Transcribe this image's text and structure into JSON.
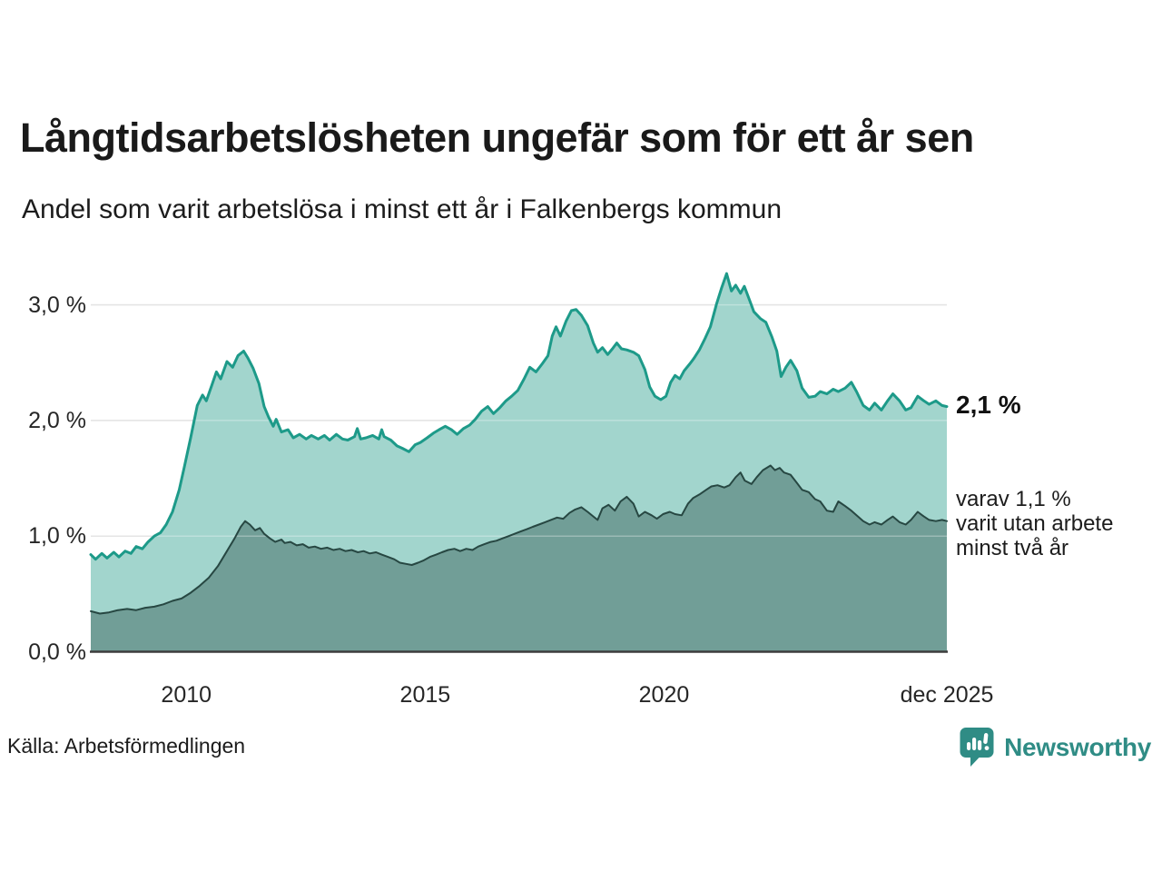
{
  "title": "Långtidsarbetslösheten ungefär som för ett år sen",
  "subtitle": "Andel som varit arbetslösa i minst ett år i Falkenbergs kommun",
  "source": "Källa: Arbetsförmedlingen",
  "brand": {
    "name": "Newsworthy",
    "color": "#2f8c85"
  },
  "annotations": {
    "total_end_label": "2,1 %",
    "subset_end_label": "varav 1,1 %\nvarit utan arbete\nminst två år"
  },
  "colors": {
    "total_line": "#1d9a89",
    "total_fill": "#a2d5cd",
    "subset_line": "#274742",
    "subset_fill": "#719e97",
    "grid": "#d9d9d9",
    "grid_overlay": "rgba(255,255,255,0.30)",
    "axis_baseline": "#3d3d3d"
  },
  "chart_data": {
    "type": "area",
    "title": "Långtidsarbetslösheten ungefär som för ett år sen",
    "subtitle": "Andel som varit arbetslösa i minst ett år i Falkenbergs kommun",
    "x_domain": [
      2008.0,
      2025.92
    ],
    "y_domain": [
      0,
      3.45
    ],
    "grid": "horizontal",
    "y_ticks": [
      {
        "label": "0,0 %",
        "value": 0
      },
      {
        "label": "1,0 %",
        "value": 1
      },
      {
        "label": "2,0 %",
        "value": 2
      },
      {
        "label": "3,0 %",
        "value": 3
      }
    ],
    "x_ticks": [
      {
        "label": "2010",
        "year": 2010
      },
      {
        "label": "2015",
        "year": 2015
      },
      {
        "label": "2020",
        "year": 2020
      },
      {
        "label": "dec 2025",
        "year": 2025.92
      }
    ],
    "series": [
      {
        "name": "Arbetslösa minst ett år",
        "end_label": "2,1 %",
        "line_color": "#1d9a89",
        "fill_color": "#a2d5cd",
        "x": [
          2008.0,
          2008.1,
          2008.23,
          2008.34,
          2008.48,
          2008.59,
          2008.72,
          2008.84,
          2008.95,
          2009.08,
          2009.2,
          2009.33,
          2009.46,
          2009.58,
          2009.71,
          2009.85,
          2009.96,
          2010.09,
          2010.23,
          2010.34,
          2010.42,
          2010.53,
          2010.63,
          2010.72,
          2010.85,
          2010.97,
          2011.08,
          2011.2,
          2011.29,
          2011.4,
          2011.52,
          2011.63,
          2011.72,
          2011.82,
          2011.88,
          2011.99,
          2012.13,
          2012.24,
          2012.37,
          2012.51,
          2012.62,
          2012.76,
          2012.89,
          2013.0,
          2013.14,
          2013.27,
          2013.38,
          2013.52,
          2013.58,
          2013.65,
          2013.76,
          2013.9,
          2014.03,
          2014.09,
          2014.14,
          2014.28,
          2014.41,
          2014.52,
          2014.66,
          2014.79,
          2014.9,
          2015.04,
          2015.17,
          2015.29,
          2015.42,
          2015.55,
          2015.67,
          2015.8,
          2015.93,
          2016.05,
          2016.18,
          2016.31,
          2016.43,
          2016.56,
          2016.69,
          2016.81,
          2016.94,
          2017.07,
          2017.19,
          2017.32,
          2017.45,
          2017.57,
          2017.66,
          2017.74,
          2017.83,
          2017.95,
          2018.06,
          2018.16,
          2018.27,
          2018.4,
          2018.52,
          2018.61,
          2018.71,
          2018.82,
          2018.92,
          2019.01,
          2019.11,
          2019.22,
          2019.36,
          2019.47,
          2019.6,
          2019.7,
          2019.81,
          2019.93,
          2020.04,
          2020.14,
          2020.23,
          2020.33,
          2020.42,
          2020.54,
          2020.63,
          2020.74,
          2020.86,
          2020.97,
          2021.1,
          2021.2,
          2021.31,
          2021.41,
          2021.5,
          2021.6,
          2021.68,
          2021.79,
          2021.88,
          2022.02,
          2022.13,
          2022.26,
          2022.36,
          2022.45,
          2022.55,
          2022.65,
          2022.78,
          2022.89,
          2023.03,
          2023.16,
          2023.27,
          2023.41,
          2023.54,
          2023.65,
          2023.79,
          2023.92,
          2024.03,
          2024.17,
          2024.3,
          2024.41,
          2024.55,
          2024.68,
          2024.79,
          2024.93,
          2025.06,
          2025.17,
          2025.31,
          2025.44,
          2025.55,
          2025.69,
          2025.82,
          2025.92
        ],
        "values": [
          0.84,
          0.8,
          0.85,
          0.81,
          0.86,
          0.82,
          0.87,
          0.85,
          0.91,
          0.89,
          0.95,
          1.0,
          1.03,
          1.1,
          1.21,
          1.4,
          1.6,
          1.85,
          2.13,
          2.22,
          2.17,
          2.3,
          2.42,
          2.36,
          2.51,
          2.46,
          2.56,
          2.6,
          2.54,
          2.45,
          2.32,
          2.12,
          2.03,
          1.95,
          2.01,
          1.9,
          1.92,
          1.85,
          1.88,
          1.84,
          1.87,
          1.84,
          1.87,
          1.83,
          1.88,
          1.84,
          1.83,
          1.86,
          1.93,
          1.84,
          1.85,
          1.87,
          1.84,
          1.92,
          1.86,
          1.83,
          1.78,
          1.76,
          1.73,
          1.79,
          1.81,
          1.85,
          1.89,
          1.92,
          1.95,
          1.92,
          1.88,
          1.93,
          1.96,
          2.01,
          2.08,
          2.12,
          2.06,
          2.11,
          2.17,
          2.21,
          2.26,
          2.36,
          2.46,
          2.42,
          2.49,
          2.56,
          2.73,
          2.81,
          2.73,
          2.86,
          2.95,
          2.96,
          2.91,
          2.82,
          2.67,
          2.59,
          2.63,
          2.57,
          2.62,
          2.67,
          2.62,
          2.61,
          2.59,
          2.56,
          2.44,
          2.29,
          2.21,
          2.18,
          2.21,
          2.33,
          2.39,
          2.36,
          2.43,
          2.49,
          2.54,
          2.61,
          2.71,
          2.81,
          3.01,
          3.14,
          3.27,
          3.12,
          3.17,
          3.1,
          3.16,
          3.04,
          2.94,
          2.88,
          2.85,
          2.72,
          2.6,
          2.38,
          2.46,
          2.52,
          2.43,
          2.28,
          2.2,
          2.21,
          2.25,
          2.23,
          2.27,
          2.25,
          2.28,
          2.33,
          2.25,
          2.13,
          2.09,
          2.15,
          2.09,
          2.17,
          2.23,
          2.17,
          2.09,
          2.11,
          2.21,
          2.17,
          2.14,
          2.17,
          2.13,
          2.12
        ]
      },
      {
        "name": "varav utan arbete minst två år",
        "end_label": "varav 1,1 %",
        "line_color": "#274742",
        "fill_color": "#719e97",
        "x": [
          2008.0,
          2008.19,
          2008.38,
          2008.57,
          2008.76,
          2008.95,
          2009.14,
          2009.33,
          2009.52,
          2009.71,
          2009.9,
          2010.09,
          2010.28,
          2010.47,
          2010.66,
          2010.85,
          2011.01,
          2011.14,
          2011.23,
          2011.33,
          2011.44,
          2011.54,
          2011.63,
          2011.75,
          2011.86,
          2011.99,
          2012.06,
          2012.18,
          2012.31,
          2012.44,
          2012.56,
          2012.69,
          2012.82,
          2012.95,
          2013.08,
          2013.21,
          2013.33,
          2013.46,
          2013.59,
          2013.71,
          2013.84,
          2013.97,
          2014.09,
          2014.22,
          2014.35,
          2014.47,
          2014.6,
          2014.72,
          2014.85,
          2014.97,
          2015.1,
          2015.23,
          2015.35,
          2015.48,
          2015.61,
          2015.73,
          2015.86,
          2015.99,
          2016.11,
          2016.24,
          2016.37,
          2016.49,
          2016.62,
          2016.75,
          2016.87,
          2017.0,
          2017.13,
          2017.25,
          2017.38,
          2017.51,
          2017.63,
          2017.76,
          2017.89,
          2018.02,
          2018.14,
          2018.27,
          2018.4,
          2018.52,
          2018.61,
          2018.71,
          2018.84,
          2018.97,
          2019.09,
          2019.22,
          2019.36,
          2019.47,
          2019.6,
          2019.74,
          2019.85,
          2019.98,
          2020.12,
          2020.23,
          2020.37,
          2020.5,
          2020.61,
          2020.74,
          2020.88,
          2020.99,
          2021.12,
          2021.26,
          2021.37,
          2021.5,
          2021.6,
          2021.69,
          2021.83,
          2021.94,
          2022.07,
          2022.23,
          2022.32,
          2022.42,
          2022.51,
          2022.65,
          2022.78,
          2022.89,
          2023.03,
          2023.16,
          2023.27,
          2023.41,
          2023.54,
          2023.65,
          2023.79,
          2023.92,
          2024.03,
          2024.17,
          2024.3,
          2024.41,
          2024.55,
          2024.68,
          2024.79,
          2024.93,
          2025.06,
          2025.17,
          2025.31,
          2025.44,
          2025.55,
          2025.69,
          2025.82,
          2025.92
        ],
        "values": [
          0.35,
          0.33,
          0.34,
          0.36,
          0.37,
          0.36,
          0.38,
          0.39,
          0.41,
          0.44,
          0.46,
          0.51,
          0.57,
          0.64,
          0.74,
          0.87,
          0.98,
          1.08,
          1.13,
          1.1,
          1.05,
          1.07,
          1.02,
          0.98,
          0.95,
          0.97,
          0.94,
          0.95,
          0.92,
          0.93,
          0.9,
          0.91,
          0.89,
          0.9,
          0.88,
          0.89,
          0.87,
          0.88,
          0.86,
          0.87,
          0.85,
          0.86,
          0.84,
          0.82,
          0.8,
          0.77,
          0.76,
          0.75,
          0.77,
          0.79,
          0.82,
          0.84,
          0.86,
          0.88,
          0.89,
          0.87,
          0.89,
          0.88,
          0.91,
          0.93,
          0.95,
          0.96,
          0.98,
          1.0,
          1.02,
          1.04,
          1.06,
          1.08,
          1.1,
          1.12,
          1.14,
          1.16,
          1.15,
          1.2,
          1.23,
          1.25,
          1.21,
          1.17,
          1.14,
          1.24,
          1.27,
          1.22,
          1.3,
          1.34,
          1.28,
          1.17,
          1.21,
          1.18,
          1.15,
          1.19,
          1.21,
          1.19,
          1.18,
          1.28,
          1.33,
          1.36,
          1.4,
          1.43,
          1.44,
          1.42,
          1.44,
          1.51,
          1.55,
          1.48,
          1.45,
          1.51,
          1.57,
          1.61,
          1.57,
          1.59,
          1.55,
          1.53,
          1.46,
          1.4,
          1.38,
          1.32,
          1.3,
          1.22,
          1.21,
          1.3,
          1.26,
          1.22,
          1.18,
          1.13,
          1.1,
          1.12,
          1.1,
          1.14,
          1.17,
          1.12,
          1.1,
          1.14,
          1.21,
          1.17,
          1.14,
          1.13,
          1.14,
          1.13
        ]
      }
    ]
  }
}
